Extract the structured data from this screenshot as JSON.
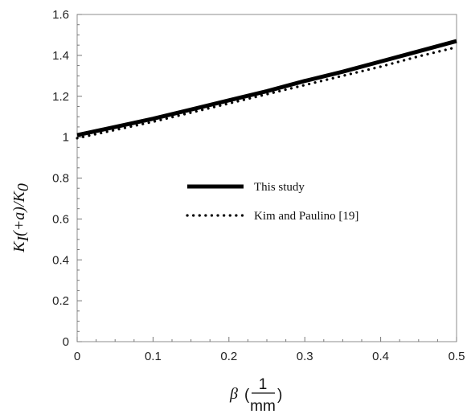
{
  "chart_data": {
    "type": "line",
    "xlabel": "β (1/mm)",
    "ylabel": "K_I(+a)/K_0",
    "xlim": [
      0,
      0.5
    ],
    "ylim": [
      0,
      1.6
    ],
    "x_ticks": [
      "0",
      "0.1",
      "0.2",
      "0.3",
      "0.4",
      "0.5"
    ],
    "y_ticks": [
      "0",
      "0.2",
      "0.4",
      "0.6",
      "0.8",
      "1",
      "1.2",
      "1.4",
      "1.6"
    ],
    "grid": false,
    "legend_position": "center",
    "series": [
      {
        "name": "This study",
        "style": "solid",
        "color": "#000000",
        "x": [
          0,
          0.05,
          0.1,
          0.15,
          0.2,
          0.25,
          0.3,
          0.35,
          0.4,
          0.45,
          0.5
        ],
        "y": [
          1.01,
          1.05,
          1.09,
          1.135,
          1.18,
          1.225,
          1.275,
          1.32,
          1.37,
          1.42,
          1.47
        ]
      },
      {
        "name": "Kim and Paulino [19]",
        "style": "dotted",
        "color": "#000000",
        "x": [
          0,
          0.05,
          0.1,
          0.15,
          0.2,
          0.25,
          0.3,
          0.35,
          0.4,
          0.45,
          0.5
        ],
        "y": [
          0.995,
          1.035,
          1.075,
          1.12,
          1.165,
          1.21,
          1.255,
          1.3,
          1.345,
          1.395,
          1.44
        ]
      }
    ]
  }
}
